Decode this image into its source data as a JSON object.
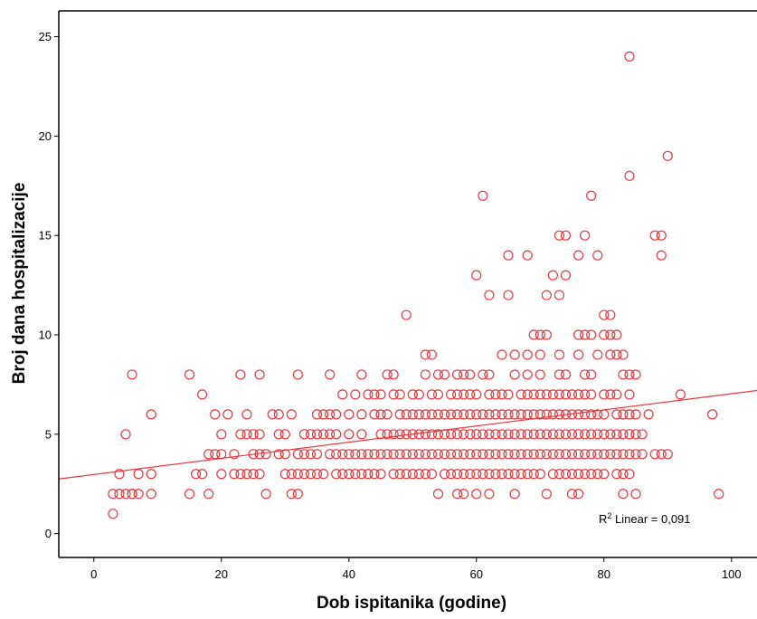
{
  "chart_data": {
    "type": "scatter",
    "xlabel": "Dob ispitanika (godine)",
    "ylabel": "Broj dana hospitalizacije",
    "xlim": [
      -5.5,
      104
    ],
    "ylim": [
      -1.2,
      26.3
    ],
    "xticks": [
      0,
      20,
      40,
      60,
      80,
      100
    ],
    "yticks": [
      0,
      5,
      10,
      15,
      20,
      25
    ],
    "grid": false,
    "legend": "none",
    "colors": {
      "marker": "#e8383d",
      "fit_line": "#e8383d",
      "axis": "#000000"
    },
    "fit_line": {
      "x": [
        -5.5,
        104
      ],
      "y": [
        2.75,
        7.2
      ]
    },
    "annotation": {
      "r_label": "R",
      "r_sup": "2",
      "text": " Linear = 0,091"
    },
    "points": [
      [
        3,
        1
      ],
      [
        3,
        2
      ],
      [
        4,
        2
      ],
      [
        4,
        3
      ],
      [
        5,
        2
      ],
      [
        5,
        5
      ],
      [
        6,
        2
      ],
      [
        6,
        2
      ],
      [
        6,
        8
      ],
      [
        7,
        2
      ],
      [
        7,
        3
      ],
      [
        9,
        2
      ],
      [
        9,
        3
      ],
      [
        9,
        6
      ],
      [
        15,
        2
      ],
      [
        15,
        8
      ],
      [
        16,
        3
      ],
      [
        17,
        3
      ],
      [
        17,
        7
      ],
      [
        18,
        2
      ],
      [
        18,
        4
      ],
      [
        19,
        4
      ],
      [
        19,
        6
      ],
      [
        20,
        3
      ],
      [
        20,
        4
      ],
      [
        20,
        5
      ],
      [
        21,
        6
      ],
      [
        22,
        3
      ],
      [
        22,
        4
      ],
      [
        23,
        3
      ],
      [
        23,
        5
      ],
      [
        23,
        8
      ],
      [
        24,
        3
      ],
      [
        24,
        5
      ],
      [
        24,
        6
      ],
      [
        25,
        3
      ],
      [
        25,
        4
      ],
      [
        25,
        5
      ],
      [
        26,
        3
      ],
      [
        26,
        4
      ],
      [
        26,
        5
      ],
      [
        26,
        8
      ],
      [
        27,
        2
      ],
      [
        27,
        4
      ],
      [
        28,
        6
      ],
      [
        29,
        4
      ],
      [
        29,
        5
      ],
      [
        29,
        6
      ],
      [
        30,
        3
      ],
      [
        30,
        4
      ],
      [
        30,
        5
      ],
      [
        31,
        2
      ],
      [
        31,
        3
      ],
      [
        31,
        6
      ],
      [
        32,
        2
      ],
      [
        32,
        3
      ],
      [
        32,
        4
      ],
      [
        32,
        8
      ],
      [
        33,
        3
      ],
      [
        33,
        4
      ],
      [
        33,
        5
      ],
      [
        34,
        3
      ],
      [
        34,
        4
      ],
      [
        34,
        5
      ],
      [
        35,
        3
      ],
      [
        35,
        4
      ],
      [
        35,
        5
      ],
      [
        35,
        6
      ],
      [
        36,
        3
      ],
      [
        36,
        5
      ],
      [
        36,
        6
      ],
      [
        37,
        4
      ],
      [
        37,
        5
      ],
      [
        37,
        6
      ],
      [
        37,
        8
      ],
      [
        38,
        3
      ],
      [
        38,
        4
      ],
      [
        38,
        5
      ],
      [
        38,
        6
      ],
      [
        39,
        3
      ],
      [
        39,
        4
      ],
      [
        39,
        7
      ],
      [
        40,
        3
      ],
      [
        40,
        4
      ],
      [
        40,
        5
      ],
      [
        40,
        6
      ],
      [
        41,
        3
      ],
      [
        41,
        4
      ],
      [
        41,
        7
      ],
      [
        42,
        3
      ],
      [
        42,
        4
      ],
      [
        42,
        5
      ],
      [
        42,
        6
      ],
      [
        42,
        8
      ],
      [
        43,
        3
      ],
      [
        43,
        4
      ],
      [
        43,
        7
      ],
      [
        44,
        3
      ],
      [
        44,
        4
      ],
      [
        44,
        6
      ],
      [
        44,
        7
      ],
      [
        45,
        3
      ],
      [
        45,
        4
      ],
      [
        45,
        5
      ],
      [
        45,
        6
      ],
      [
        45,
        7
      ],
      [
        46,
        4
      ],
      [
        46,
        5
      ],
      [
        46,
        6
      ],
      [
        46,
        8
      ],
      [
        47,
        3
      ],
      [
        47,
        4
      ],
      [
        47,
        5
      ],
      [
        47,
        7
      ],
      [
        47,
        8
      ],
      [
        48,
        3
      ],
      [
        48,
        4
      ],
      [
        48,
        5
      ],
      [
        48,
        6
      ],
      [
        48,
        7
      ],
      [
        49,
        3
      ],
      [
        49,
        4
      ],
      [
        49,
        5
      ],
      [
        49,
        6
      ],
      [
        49,
        11
      ],
      [
        50,
        3
      ],
      [
        50,
        4
      ],
      [
        50,
        5
      ],
      [
        50,
        6
      ],
      [
        50,
        7
      ],
      [
        51,
        3
      ],
      [
        51,
        4
      ],
      [
        51,
        5
      ],
      [
        51,
        6
      ],
      [
        51,
        7
      ],
      [
        52,
        3
      ],
      [
        52,
        4
      ],
      [
        52,
        5
      ],
      [
        52,
        6
      ],
      [
        52,
        8
      ],
      [
        52,
        9
      ],
      [
        53,
        3
      ],
      [
        53,
        4
      ],
      [
        53,
        5
      ],
      [
        53,
        6
      ],
      [
        53,
        7
      ],
      [
        53,
        9
      ],
      [
        54,
        2
      ],
      [
        54,
        4
      ],
      [
        54,
        5
      ],
      [
        54,
        6
      ],
      [
        54,
        7
      ],
      [
        54,
        8
      ],
      [
        55,
        3
      ],
      [
        55,
        4
      ],
      [
        55,
        5
      ],
      [
        55,
        6
      ],
      [
        55,
        8
      ],
      [
        56,
        3
      ],
      [
        56,
        4
      ],
      [
        56,
        5
      ],
      [
        56,
        6
      ],
      [
        56,
        7
      ],
      [
        57,
        2
      ],
      [
        57,
        3
      ],
      [
        57,
        4
      ],
      [
        57,
        5
      ],
      [
        57,
        6
      ],
      [
        57,
        7
      ],
      [
        57,
        8
      ],
      [
        58,
        2
      ],
      [
        58,
        3
      ],
      [
        58,
        4
      ],
      [
        58,
        5
      ],
      [
        58,
        6
      ],
      [
        58,
        7
      ],
      [
        58,
        8
      ],
      [
        59,
        3
      ],
      [
        59,
        4
      ],
      [
        59,
        5
      ],
      [
        59,
        6
      ],
      [
        59,
        7
      ],
      [
        59,
        8
      ],
      [
        60,
        2
      ],
      [
        60,
        3
      ],
      [
        60,
        4
      ],
      [
        60,
        5
      ],
      [
        60,
        6
      ],
      [
        60,
        7
      ],
      [
        60,
        13
      ],
      [
        61,
        3
      ],
      [
        61,
        4
      ],
      [
        61,
        5
      ],
      [
        61,
        6
      ],
      [
        61,
        8
      ],
      [
        61,
        17
      ],
      [
        62,
        2
      ],
      [
        62,
        3
      ],
      [
        62,
        4
      ],
      [
        62,
        5
      ],
      [
        62,
        6
      ],
      [
        62,
        7
      ],
      [
        62,
        8
      ],
      [
        62,
        12
      ],
      [
        63,
        3
      ],
      [
        63,
        4
      ],
      [
        63,
        5
      ],
      [
        63,
        6
      ],
      [
        63,
        7
      ],
      [
        64,
        3
      ],
      [
        64,
        4
      ],
      [
        64,
        5
      ],
      [
        64,
        6
      ],
      [
        64,
        7
      ],
      [
        64,
        9
      ],
      [
        65,
        3
      ],
      [
        65,
        4
      ],
      [
        65,
        5
      ],
      [
        65,
        6
      ],
      [
        65,
        7
      ],
      [
        65,
        12
      ],
      [
        65,
        14
      ],
      [
        66,
        2
      ],
      [
        66,
        3
      ],
      [
        66,
        4
      ],
      [
        66,
        5
      ],
      [
        66,
        6
      ],
      [
        66,
        8
      ],
      [
        66,
        9
      ],
      [
        67,
        3
      ],
      [
        67,
        4
      ],
      [
        67,
        5
      ],
      [
        67,
        6
      ],
      [
        67,
        7
      ],
      [
        68,
        3
      ],
      [
        68,
        4
      ],
      [
        68,
        5
      ],
      [
        68,
        6
      ],
      [
        68,
        7
      ],
      [
        68,
        8
      ],
      [
        68,
        9
      ],
      [
        68,
        14
      ],
      [
        69,
        3
      ],
      [
        69,
        4
      ],
      [
        69,
        5
      ],
      [
        69,
        6
      ],
      [
        69,
        7
      ],
      [
        69,
        10
      ],
      [
        70,
        3
      ],
      [
        70,
        4
      ],
      [
        70,
        5
      ],
      [
        70,
        6
      ],
      [
        70,
        7
      ],
      [
        70,
        8
      ],
      [
        70,
        9
      ],
      [
        70,
        10
      ],
      [
        71,
        2
      ],
      [
        71,
        4
      ],
      [
        71,
        5
      ],
      [
        71,
        6
      ],
      [
        71,
        7
      ],
      [
        71,
        10
      ],
      [
        71,
        12
      ],
      [
        72,
        3
      ],
      [
        72,
        4
      ],
      [
        72,
        5
      ],
      [
        72,
        6
      ],
      [
        72,
        7
      ],
      [
        72,
        13
      ],
      [
        73,
        3
      ],
      [
        73,
        4
      ],
      [
        73,
        5
      ],
      [
        73,
        6
      ],
      [
        73,
        7
      ],
      [
        73,
        8
      ],
      [
        73,
        9
      ],
      [
        73,
        12
      ],
      [
        73,
        15
      ],
      [
        74,
        3
      ],
      [
        74,
        4
      ],
      [
        74,
        5
      ],
      [
        74,
        6
      ],
      [
        74,
        7
      ],
      [
        74,
        8
      ],
      [
        74,
        13
      ],
      [
        74,
        15
      ],
      [
        75,
        2
      ],
      [
        75,
        3
      ],
      [
        75,
        4
      ],
      [
        75,
        5
      ],
      [
        75,
        6
      ],
      [
        75,
        7
      ],
      [
        76,
        2
      ],
      [
        76,
        3
      ],
      [
        76,
        4
      ],
      [
        76,
        5
      ],
      [
        76,
        6
      ],
      [
        76,
        7
      ],
      [
        76,
        9
      ],
      [
        76,
        10
      ],
      [
        76,
        14
      ],
      [
        77,
        3
      ],
      [
        77,
        4
      ],
      [
        77,
        5
      ],
      [
        77,
        6
      ],
      [
        77,
        7
      ],
      [
        77,
        8
      ],
      [
        77,
        10
      ],
      [
        77,
        15
      ],
      [
        78,
        3
      ],
      [
        78,
        4
      ],
      [
        78,
        5
      ],
      [
        78,
        6
      ],
      [
        78,
        7
      ],
      [
        78,
        8
      ],
      [
        78,
        10
      ],
      [
        78,
        17
      ],
      [
        79,
        3
      ],
      [
        79,
        4
      ],
      [
        79,
        5
      ],
      [
        79,
        6
      ],
      [
        79,
        9
      ],
      [
        79,
        14
      ],
      [
        80,
        3
      ],
      [
        80,
        4
      ],
      [
        80,
        5
      ],
      [
        80,
        6
      ],
      [
        80,
        7
      ],
      [
        80,
        10
      ],
      [
        80,
        11
      ],
      [
        81,
        4
      ],
      [
        81,
        5
      ],
      [
        81,
        7
      ],
      [
        81,
        9
      ],
      [
        81,
        10
      ],
      [
        81,
        11
      ],
      [
        82,
        3
      ],
      [
        82,
        4
      ],
      [
        82,
        5
      ],
      [
        82,
        6
      ],
      [
        82,
        7
      ],
      [
        82,
        9
      ],
      [
        82,
        10
      ],
      [
        83,
        2
      ],
      [
        83,
        3
      ],
      [
        83,
        4
      ],
      [
        83,
        5
      ],
      [
        83,
        6
      ],
      [
        83,
        8
      ],
      [
        83,
        9
      ],
      [
        84,
        3
      ],
      [
        84,
        4
      ],
      [
        84,
        5
      ],
      [
        84,
        6
      ],
      [
        84,
        7
      ],
      [
        84,
        8
      ],
      [
        84,
        18
      ],
      [
        84,
        24
      ],
      [
        85,
        2
      ],
      [
        85,
        4
      ],
      [
        85,
        5
      ],
      [
        85,
        6
      ],
      [
        85,
        8
      ],
      [
        86,
        4
      ],
      [
        86,
        5
      ],
      [
        87,
        6
      ],
      [
        88,
        4
      ],
      [
        88,
        15
      ],
      [
        89,
        4
      ],
      [
        89,
        14
      ],
      [
        89,
        15
      ],
      [
        90,
        4
      ],
      [
        90,
        19
      ],
      [
        92,
        7
      ],
      [
        97,
        6
      ],
      [
        98,
        2
      ]
    ]
  }
}
